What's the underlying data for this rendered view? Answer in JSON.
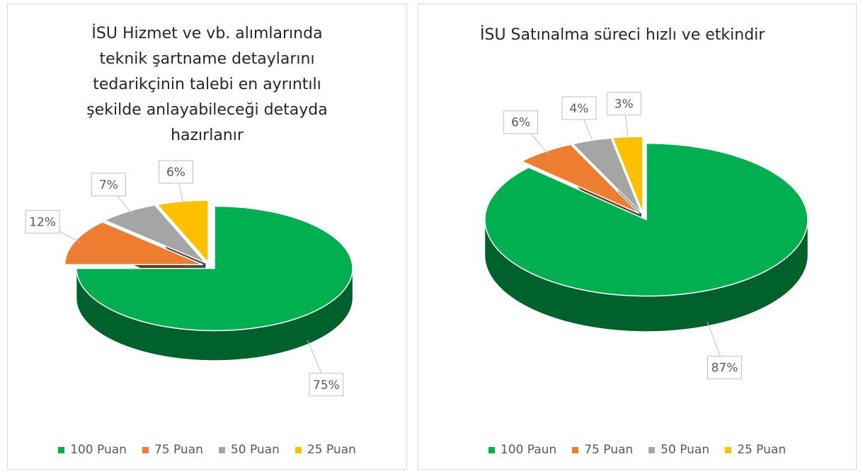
{
  "chart_data": [
    {
      "type": "pie",
      "title": "İSU Hizmet ve vb. alımlarında teknik şartname detaylarını tedarikçinin talebi en ayrıntılı şekilde anlayabileceği detayda hazırlanır",
      "categories": [
        "100 Puan",
        "75 Puan",
        "50 Puan",
        "25 Puan"
      ],
      "values": [
        75,
        12,
        7,
        6
      ],
      "value_labels": [
        "75%",
        "12%",
        "7%",
        "6%"
      ],
      "colors": [
        "#00b050",
        "#ed7d31",
        "#a5a5a5",
        "#ffc000"
      ],
      "legend": "bottom"
    },
    {
      "type": "pie",
      "title": "İSU Satınalma süreci hızlı ve etkindir",
      "categories": [
        "100 Paun",
        "75 Puan",
        "50 Puan",
        "25 Puan"
      ],
      "values": [
        87,
        6,
        4,
        3
      ],
      "value_labels": [
        "87%",
        "6%",
        "4%",
        "3%"
      ],
      "colors": [
        "#00b050",
        "#ed7d31",
        "#a5a5a5",
        "#ffc000"
      ],
      "legend": "bottom"
    }
  ]
}
